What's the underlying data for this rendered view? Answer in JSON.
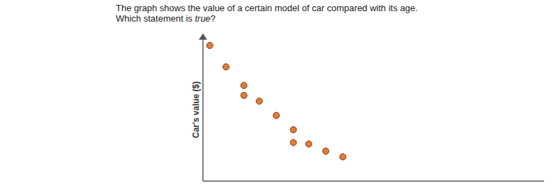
{
  "chart_data": {
    "type": "scatter",
    "title": "The graph shows the value of a certain model of car compared with its age.",
    "subtitle": "Which statement is true?",
    "y_label": "Car's value ($)",
    "x": [
      0.4,
      1.35,
      2.4,
      2.4,
      3.3,
      4.3,
      5.3,
      5.3,
      6.2,
      7.2,
      8.2
    ],
    "values": [
      9.5,
      8.0,
      6.7,
      6.0,
      5.6,
      4.6,
      3.6,
      2.7,
      2.6,
      2.1,
      1.7
    ],
    "xlim": [
      0,
      20
    ],
    "ylim": [
      0,
      10
    ],
    "color": "#e07b39",
    "marker": "circle",
    "grid": false,
    "tick_labels": false
  }
}
